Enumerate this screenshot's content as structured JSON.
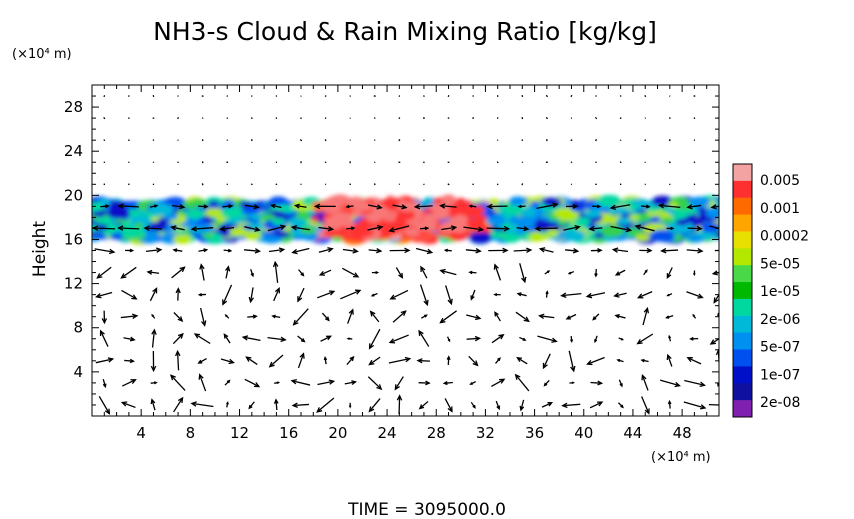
{
  "chart_data": {
    "type": "heatmap",
    "title": "NH3-s Cloud & Rain Mixing Ratio [kg/kg]",
    "ylabel": "Height",
    "y_unit": "(×10⁴ m)",
    "x_unit": "(×10⁴ m)",
    "xlim": [
      0,
      51
    ],
    "ylim": [
      0,
      30
    ],
    "x_ticks": [
      "4",
      "8",
      "12",
      "16",
      "20",
      "24",
      "28",
      "32",
      "36",
      "40",
      "44",
      "48"
    ],
    "y_ticks": [
      "4",
      "8",
      "12",
      "16",
      "20",
      "24",
      "28"
    ],
    "time_label": "TIME  =  3095000.0",
    "colorbar": {
      "labels": [
        "0.005",
        "0.001",
        "0.0002",
        "5e-05",
        "1e-05",
        "2e-06",
        "5e-07",
        "1e-07",
        "2e-08"
      ],
      "colors": [
        "#f4a3a3",
        "#ff3030",
        "#ff6a00",
        "#ffa500",
        "#e8e000",
        "#b4e800",
        "#48d848",
        "#00b800",
        "#00d8a0",
        "#00b8d8",
        "#0090f0",
        "#0050f0",
        "#0010c8",
        "#1010a0",
        "#8020b0"
      ]
    },
    "cloud_layer": {
      "bottom_height": 16,
      "top_height": 19.5,
      "max_region_x": [
        18,
        32
      ],
      "max_value": 0.005
    }
  }
}
